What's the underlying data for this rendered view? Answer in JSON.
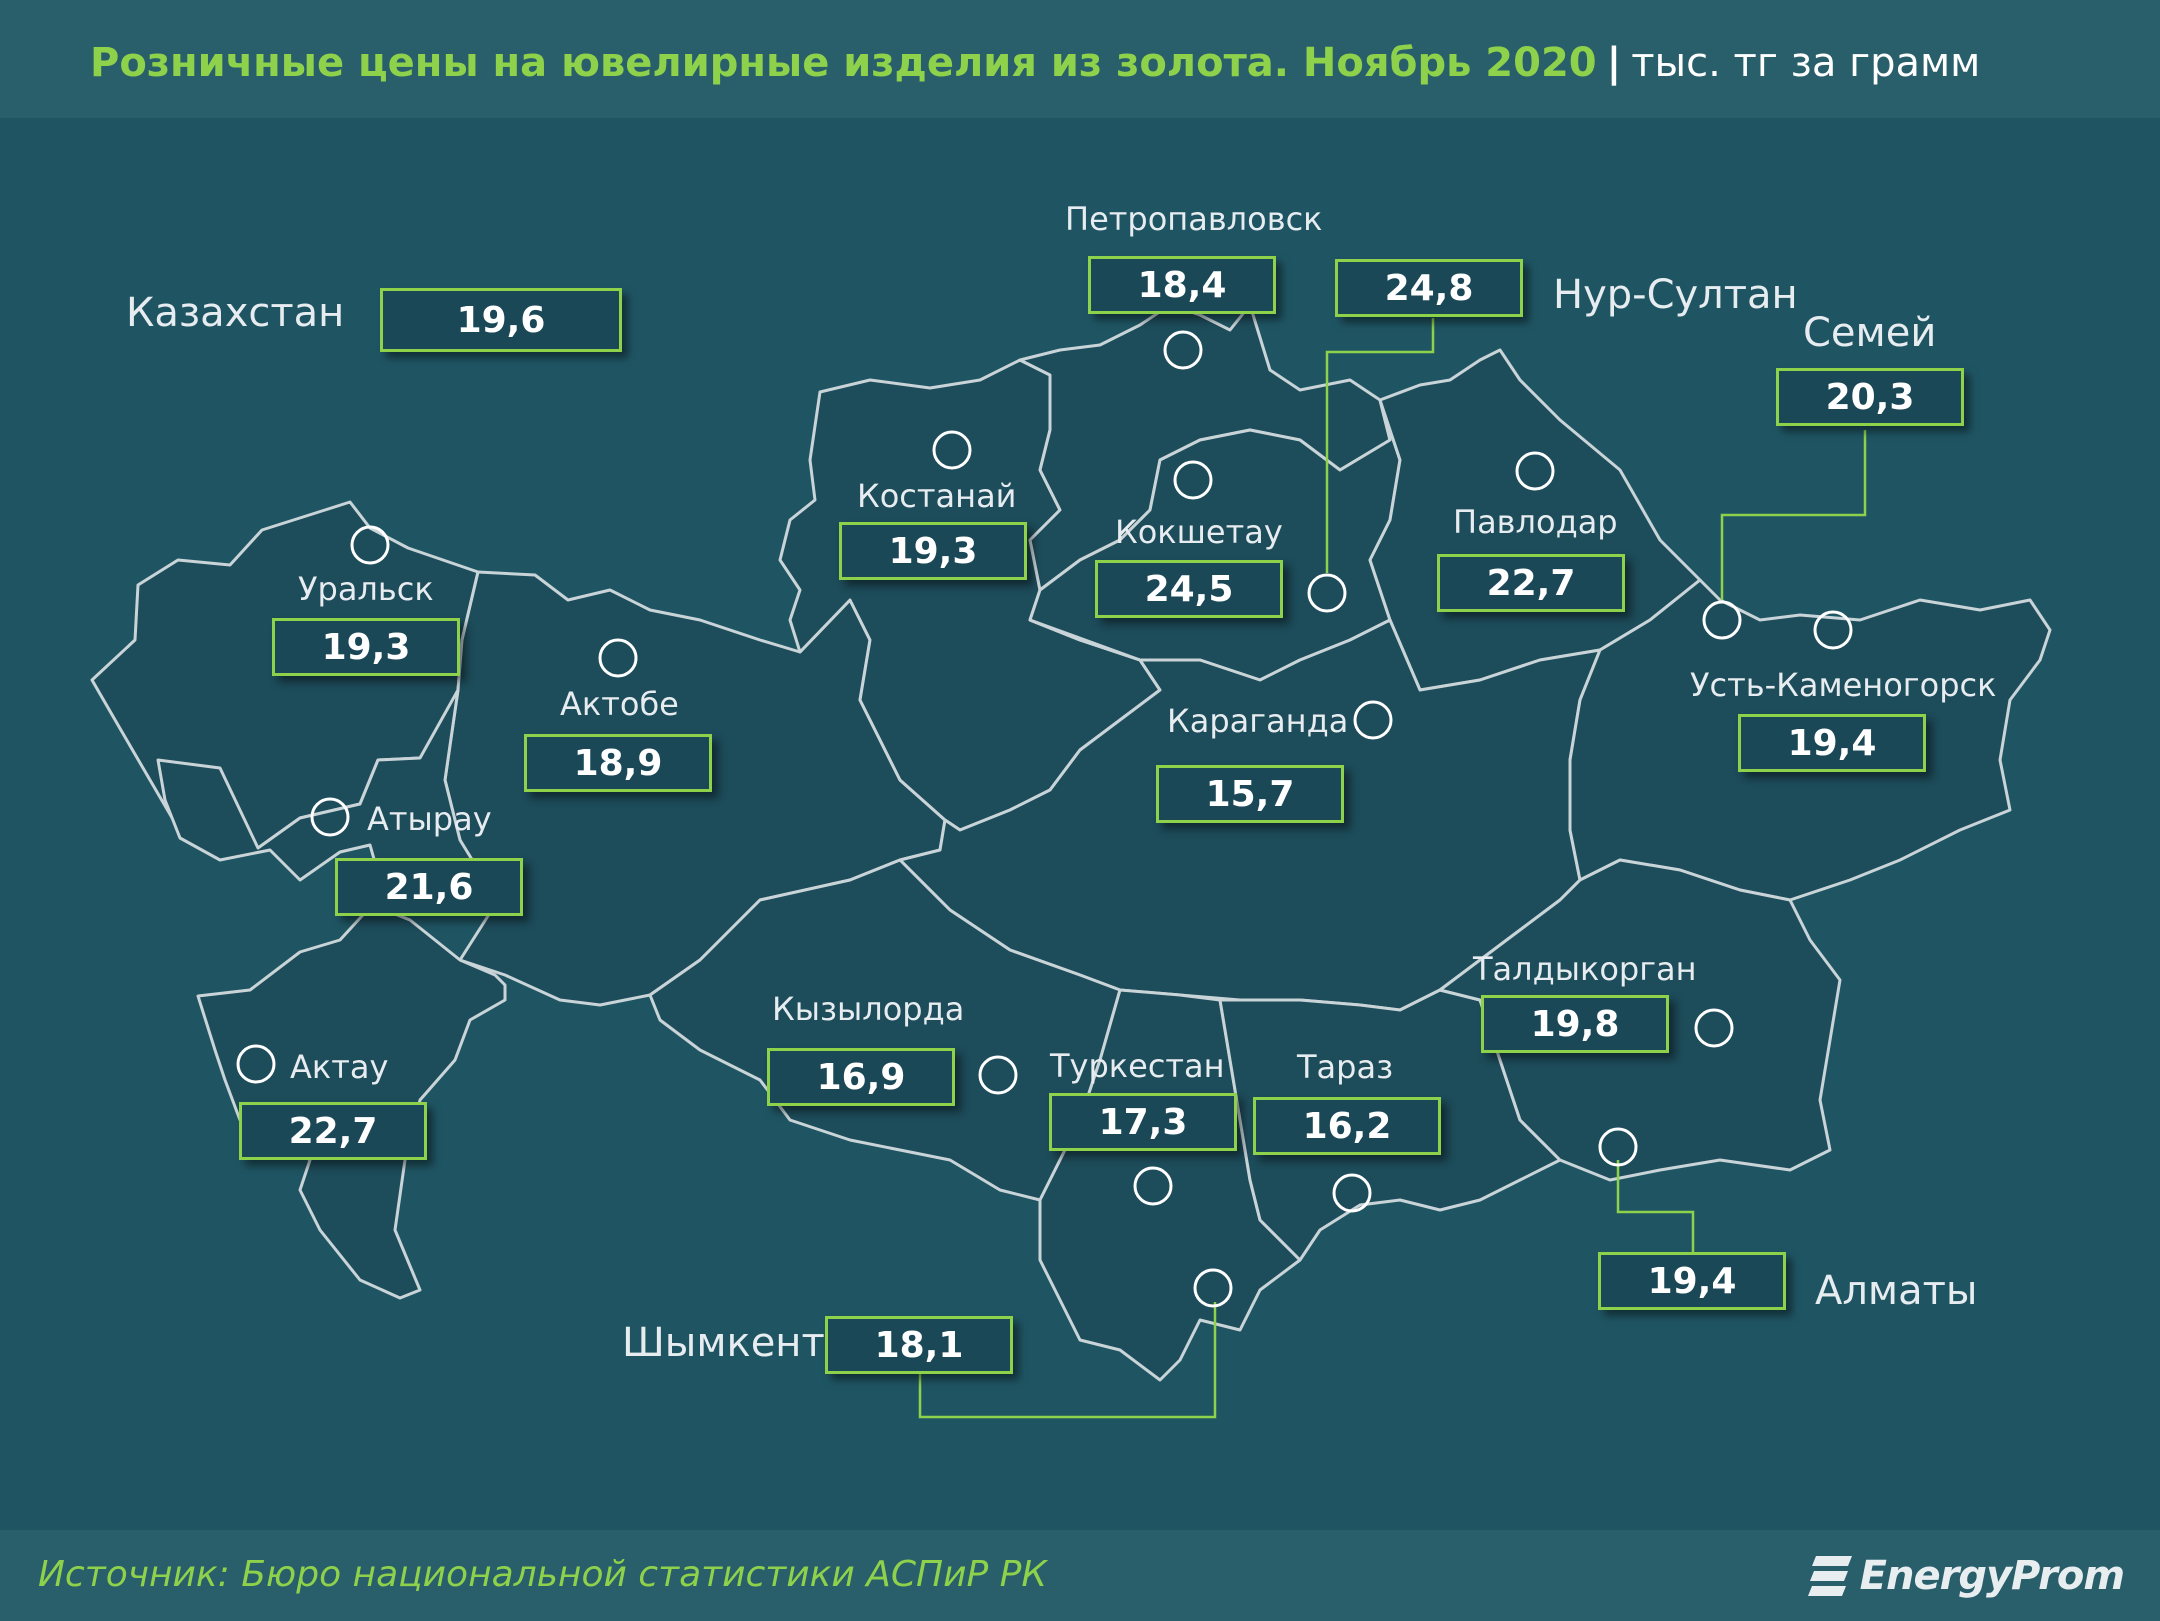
{
  "header": {
    "title": "Розничные цены на ювелирные изделия из золота. Ноябрь 2020",
    "separator": "|",
    "unit": "тыс. тг за грамм"
  },
  "country": {
    "label": "Казахстан",
    "value": "19,6"
  },
  "cities": [
    {
      "id": "petropavlovsk",
      "label": "Петропавловск",
      "value": "18,4"
    },
    {
      "id": "nur-sultan",
      "label": "Нур-Султан",
      "value": "24,8"
    },
    {
      "id": "semey",
      "label": "Семей",
      "value": "20,3"
    },
    {
      "id": "kostanay",
      "label": "Костанай",
      "value": "19,3"
    },
    {
      "id": "kokshetau",
      "label": "Кокшетау",
      "value": "24,5"
    },
    {
      "id": "pavlodar",
      "label": "Павлодар",
      "value": "22,7"
    },
    {
      "id": "uralsk",
      "label": "Уральск",
      "value": "19,3"
    },
    {
      "id": "aktobe",
      "label": "Актобе",
      "value": "18,9"
    },
    {
      "id": "karaganda",
      "label": "Караганда",
      "value": "15,7"
    },
    {
      "id": "ust-kamenogorsk",
      "label": "Усть-Каменогорск",
      "value": "19,4"
    },
    {
      "id": "atyrau",
      "label": "Атырау",
      "value": "21,6"
    },
    {
      "id": "aktau",
      "label": "Актау",
      "value": "22,7"
    },
    {
      "id": "kyzylorda",
      "label": "Кызылорда",
      "value": "16,9"
    },
    {
      "id": "turkestan",
      "label": "Туркестан",
      "value": "17,3"
    },
    {
      "id": "taraz",
      "label": "Тараз",
      "value": "16,2"
    },
    {
      "id": "taldykorgan",
      "label": "Талдыкорган",
      "value": "19,8"
    },
    {
      "id": "almaty",
      "label": "Алматы",
      "value": "19,4"
    },
    {
      "id": "shymkent",
      "label": "Шымкент",
      "value": "18,1"
    }
  ],
  "footer": {
    "source": "Источник: Бюро национальной статистики АСПиР РК",
    "logo_text": "EnergyProm"
  },
  "colors": {
    "background": "#1f5563",
    "header_band": "#295e6b",
    "accent_green": "#8ed14b",
    "region_fill": "#1d4c5a",
    "region_border": "#c9d4d8"
  }
}
